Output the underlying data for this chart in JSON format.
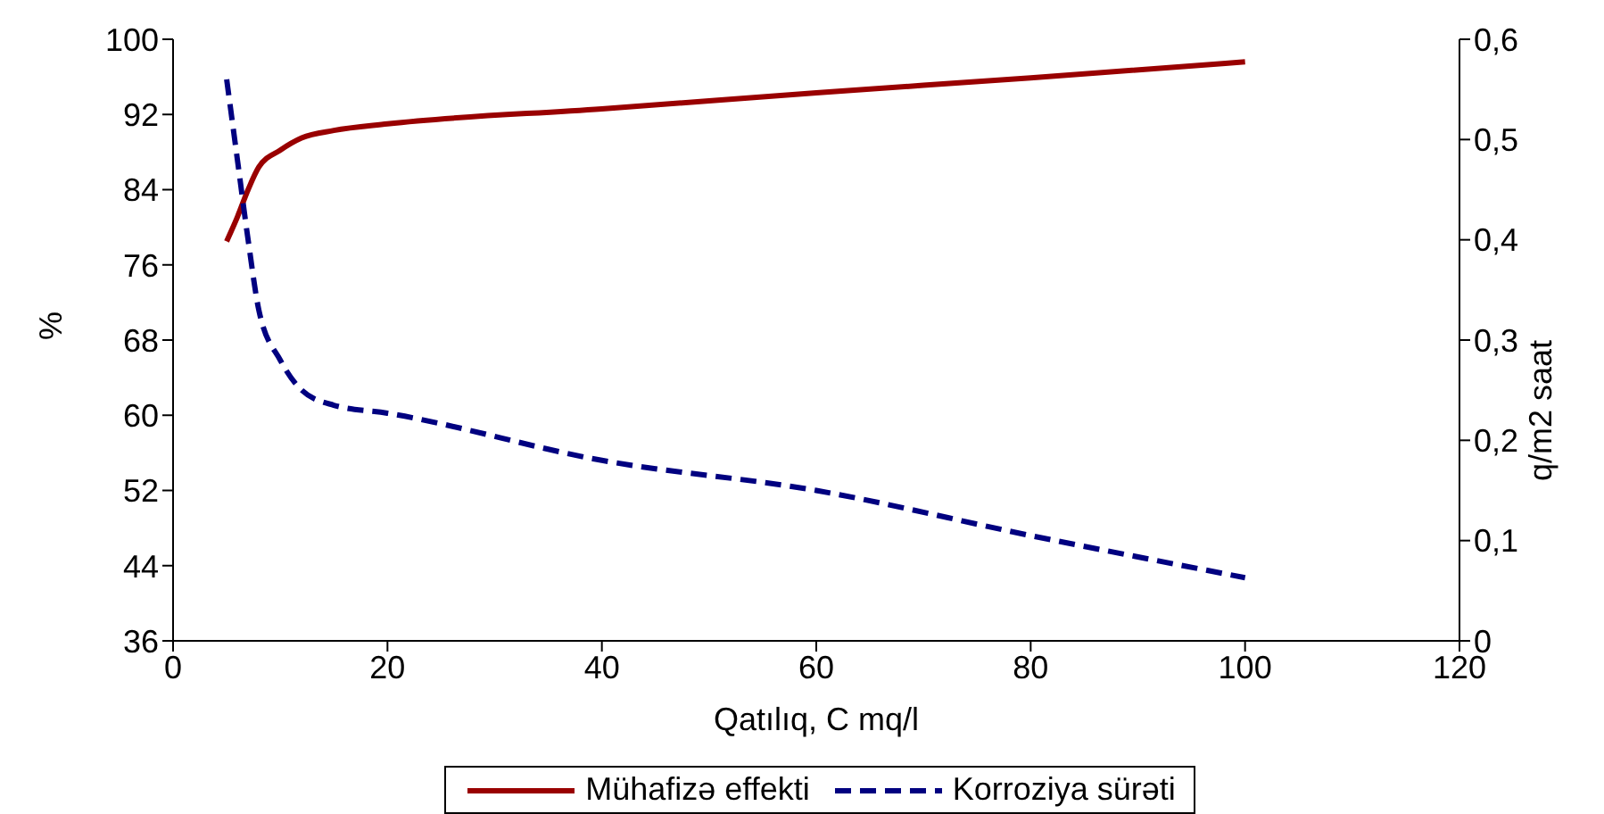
{
  "chart_data": {
    "type": "line",
    "xlabel": "Qatılıq, C mq/l",
    "ylabel": "%",
    "y2label": "q/m2 saat",
    "xlim": [
      0,
      120
    ],
    "xticks": [
      0,
      20,
      40,
      60,
      80,
      100,
      120
    ],
    "ylim": [
      36,
      100
    ],
    "yticks": [
      36,
      44,
      52,
      60,
      68,
      76,
      84,
      92,
      100
    ],
    "y2lim": [
      0,
      0.6
    ],
    "y2ticks": [
      {
        "value": 0,
        "label": "0"
      },
      {
        "value": 0.1,
        "label": "0,1"
      },
      {
        "value": 0.2,
        "label": "0,2"
      },
      {
        "value": 0.3,
        "label": "0,3"
      },
      {
        "value": 0.4,
        "label": "0,4"
      },
      {
        "value": 0.5,
        "label": "0,5"
      },
      {
        "value": 0.6,
        "label": "0,6"
      }
    ],
    "x": [
      5,
      6,
      7,
      8,
      10,
      12,
      15,
      20,
      40,
      60,
      80,
      100
    ],
    "legend": "bottom",
    "marker": "none",
    "series": [
      {
        "name": "Mühafizə effekti",
        "color": "#990000",
        "line_style": "solid",
        "values": [
          78.5,
          81.1,
          84,
          86.4,
          88.2,
          89.5,
          90.3,
          91,
          92.6,
          94.3,
          95.9,
          97.6
        ]
      },
      {
        "name": "Korroziya sürəti",
        "color": "#000080",
        "line_style": "dashed",
        "axis": "y2",
        "values": [
          0.56,
          0.48,
          0.4,
          0.33,
          0.28,
          0.25,
          0.235,
          0.227,
          0.18,
          0.15,
          0.105,
          0.063
        ]
      }
    ]
  }
}
